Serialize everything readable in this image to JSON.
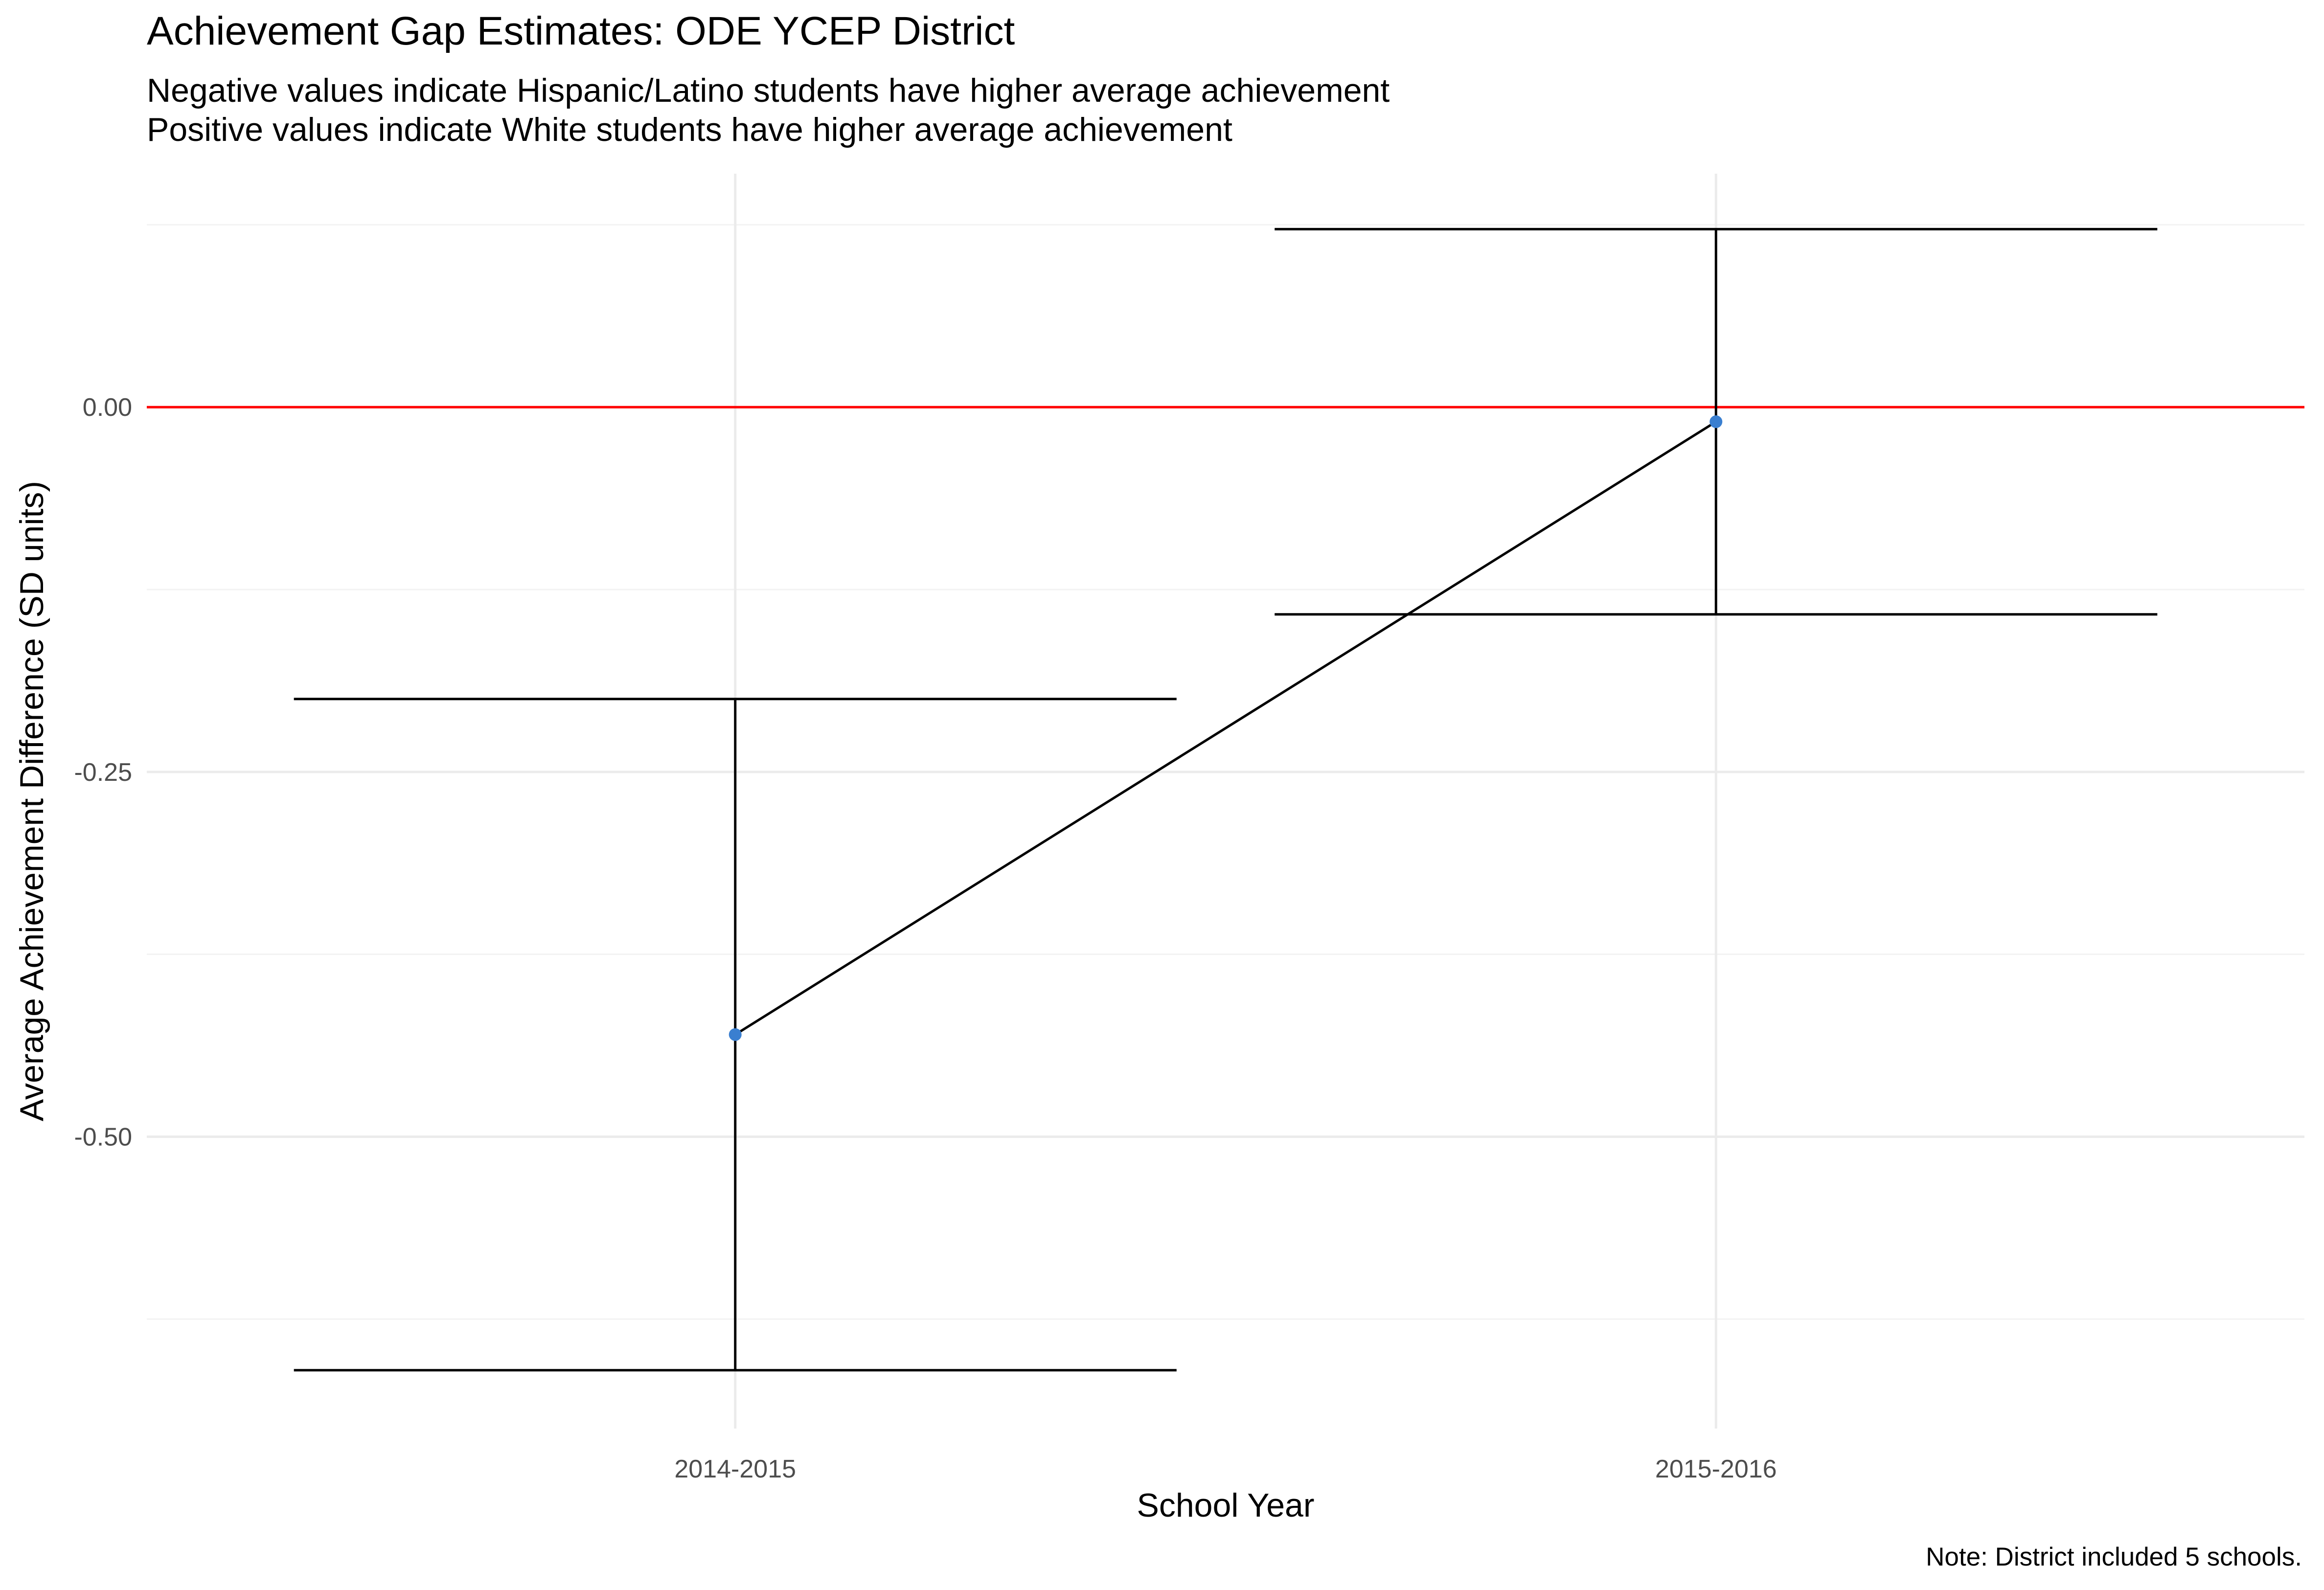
{
  "chart_data": {
    "type": "line",
    "title": "Achievement Gap Estimates: ODE YCEP District",
    "subtitle_lines": [
      "Negative values indicate Hispanic/Latino students have higher average achievement",
      "Positive values indicate White students have higher average achievement"
    ],
    "xlabel": "School Year",
    "ylabel": "Average Achievement Difference (SD units)",
    "caption": "Note: District included 5 schools.",
    "categories": [
      "2014-2015",
      "2015-2016"
    ],
    "series": [
      {
        "values": [
          -0.43,
          -0.01
        ],
        "lower": [
          -0.66,
          -0.142
        ],
        "upper": [
          -0.2,
          0.122
        ]
      }
    ],
    "yticks": [
      0.0,
      -0.25,
      -0.5
    ],
    "ytick_labels": [
      "0.00",
      "-0.25",
      "-0.50"
    ],
    "ylim": [
      -0.7,
      0.16
    ],
    "reference_line": 0,
    "grid": true,
    "colors": {
      "point": "#3a7fd0",
      "line": "#000000",
      "reference": "#ff0000",
      "grid": "#ebebeb"
    }
  }
}
